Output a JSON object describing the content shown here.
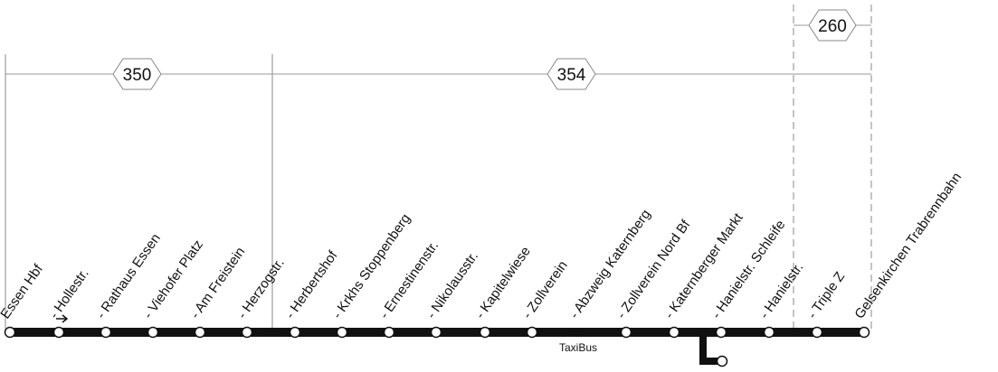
{
  "route_segments": [
    {
      "line": "350"
    },
    {
      "line": "354"
    },
    {
      "line": "260"
    }
  ],
  "stops": [
    {
      "label": "Essen Hbf"
    },
    {
      "label": "- Hollestr."
    },
    {
      "label": "- Rathaus Essen"
    },
    {
      "label": "- Viehofer Platz"
    },
    {
      "label": "- Am Freistein"
    },
    {
      "label": "- Herzogstr."
    },
    {
      "label": "- Herbertshof"
    },
    {
      "label": "- Krkhs Stoppenberg"
    },
    {
      "label": "- Ernestinenstr."
    },
    {
      "label": "- Nikolausstr."
    },
    {
      "label": "- Kapitelwiese"
    },
    {
      "label": "- Zollverein"
    },
    {
      "label": "- Abzweig Katernberg"
    },
    {
      "label": "- Zollverein Nord Bf"
    },
    {
      "label": "- Katernberger Markt"
    },
    {
      "label": "- Hanielstr. Schleife"
    },
    {
      "label": "- Hanielstr."
    },
    {
      "label": "- Triple Z"
    },
    {
      "label": "Gelsenkirchen Trabrennbahn"
    }
  ],
  "taxibus": {
    "label": "TaxiBus"
  },
  "colors": {
    "line": "#111111",
    "stop_fill": "#ffffff",
    "guide": "#9a9a9a"
  }
}
